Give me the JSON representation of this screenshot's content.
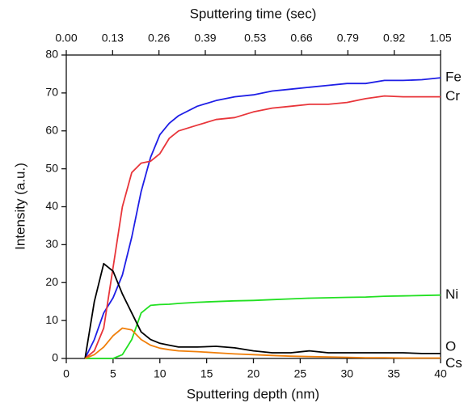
{
  "chart_data": {
    "type": "line",
    "xlabel": "Sputtering depth (nm)",
    "ylabel": "Intensity (a.u.)",
    "x2label": "Sputtering time (sec)",
    "x": [
      2,
      3,
      4,
      5,
      6,
      7,
      8,
      9,
      10,
      11,
      12,
      14,
      16,
      18,
      20,
      22,
      24,
      26,
      28,
      30,
      32,
      34,
      36,
      38,
      40
    ],
    "xlim": [
      0,
      40
    ],
    "xticks": [
      0,
      5,
      10,
      15,
      20,
      25,
      30,
      35,
      40
    ],
    "x2lim": [
      0,
      1.05
    ],
    "x2ticks": [
      {
        "value": 0,
        "label": "0.00"
      },
      0.13,
      0.26,
      0.39,
      0.53,
      0.66,
      0.79,
      0.92,
      1.05
    ],
    "ylim": [
      0,
      80
    ],
    "yticks": [
      0,
      10,
      20,
      30,
      40,
      50,
      60,
      70,
      80
    ],
    "series": [
      {
        "name": "Fe",
        "color": "#1f1fe6",
        "values": [
          0,
          5,
          12,
          16,
          22,
          32,
          44,
          53,
          59,
          62,
          64,
          66.5,
          68,
          69,
          69.5,
          70.5,
          71,
          71.5,
          72,
          72.5,
          72.5,
          73.3,
          73.3,
          73.5,
          74
        ]
      },
      {
        "name": "Cr",
        "color": "#e8353a",
        "values": [
          0,
          2,
          8,
          24,
          40,
          49,
          51.5,
          52,
          54,
          58,
          60,
          61.5,
          63,
          63.5,
          65,
          66,
          66.5,
          67,
          67,
          67.5,
          68.5,
          69.2,
          69,
          69,
          69
        ]
      },
      {
        "name": "Ni",
        "color": "#22e022",
        "values": [
          0,
          0,
          0,
          0,
          1,
          5,
          12,
          14,
          14.2,
          14.3,
          14.5,
          14.8,
          15,
          15.2,
          15.3,
          15.5,
          15.7,
          15.9,
          16,
          16.1,
          16.2,
          16.4,
          16.5,
          16.6,
          16.7
        ]
      },
      {
        "name": "O",
        "color": "#000000",
        "values": [
          0,
          15,
          25,
          23,
          17,
          12,
          7,
          5,
          4,
          3.5,
          3,
          3,
          3.2,
          2.8,
          2,
          1.5,
          1.5,
          2,
          1.5,
          1.5,
          1.5,
          1.5,
          1.5,
          1.3,
          1.3
        ]
      },
      {
        "name": "Cs",
        "color": "#f07f0a",
        "values": [
          0,
          1,
          3,
          6,
          8,
          7.5,
          5,
          3.5,
          2.7,
          2.3,
          2,
          1.8,
          1.5,
          1.2,
          1,
          0.8,
          0.6,
          0.5,
          0.4,
          0.3,
          0.2,
          0.2,
          0.1,
          0.1,
          0.1
        ]
      }
    ]
  }
}
